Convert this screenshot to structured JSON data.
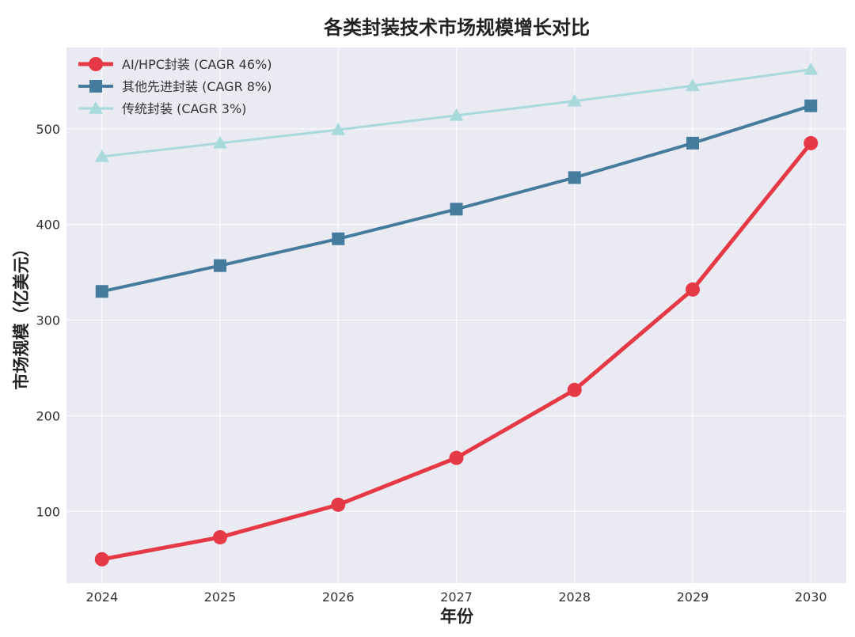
{
  "chart_data": {
    "type": "line",
    "title": "各类封装技术市场规模增长对比",
    "xlabel": "年份",
    "ylabel": "市场规模（亿美元）",
    "x": [
      2024,
      2025,
      2026,
      2027,
      2028,
      2029,
      2030
    ],
    "xlim": [
      2023.7,
      2030.3
    ],
    "ylim": [
      25,
      585
    ],
    "yticks": [
      100,
      200,
      300,
      400,
      500
    ],
    "grid": true,
    "legend_position": "top-left",
    "series": [
      {
        "name": "AI/HPC封装 (CAGR 46%)",
        "color": "#e63946",
        "marker": "circle",
        "values": [
          50,
          73,
          107,
          156,
          227,
          332,
          485
        ]
      },
      {
        "name": "其他先进封装 (CAGR 8%)",
        "color": "#457b9d",
        "marker": "square",
        "values": [
          330,
          357,
          385,
          416,
          449,
          485,
          524
        ]
      },
      {
        "name": "传统封装 (CAGR 3%)",
        "color": "#a8dadc",
        "marker": "triangle",
        "values": [
          471,
          485,
          499,
          514,
          529,
          545,
          562
        ]
      }
    ]
  }
}
